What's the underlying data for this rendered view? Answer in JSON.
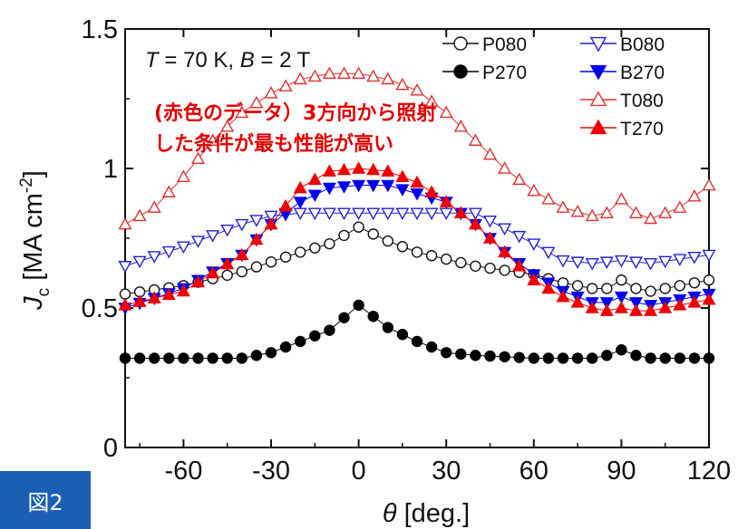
{
  "figure_label": "図2",
  "chart_data": {
    "type": "scatter",
    "condition_text": {
      "T": "T",
      "temp": " = 70 K, ",
      "B": "B",
      "field": " = 2 T"
    },
    "annotation_lines": [
      "(赤色のデータ）3方向から照射",
      "した条件が最も性能が高い"
    ],
    "xlabel": {
      "symbol": "θ",
      "unit": " [deg.]"
    },
    "ylabel": {
      "symbol": "J",
      "sub": "c",
      "unit": " [MA cm",
      "sup": "-2",
      "close": "]"
    },
    "xlim": [
      -80,
      120
    ],
    "ylim": [
      0,
      1.5
    ],
    "xticks": [
      -60,
      -30,
      0,
      30,
      60,
      90,
      120
    ],
    "xtick_labels": [
      "-60",
      "-30",
      "0",
      "30",
      "60",
      "90",
      "120"
    ],
    "yticks": [
      0,
      0.5,
      1,
      1.5
    ],
    "ytick_labels": [
      "0",
      "0.5",
      "1",
      "1.5"
    ],
    "grid": false,
    "legend_placement": "top-right",
    "series": [
      {
        "name": "P080",
        "color": "#111111",
        "marker": "circle",
        "filled": false,
        "theta": [
          -80,
          -60,
          -40,
          -20,
          -10,
          0,
          10,
          20,
          40,
          60,
          70,
          80,
          85,
          90,
          95,
          100,
          120
        ],
        "values": [
          0.55,
          0.58,
          0.63,
          0.7,
          0.73,
          0.79,
          0.74,
          0.7,
          0.65,
          0.62,
          0.59,
          0.57,
          0.57,
          0.6,
          0.57,
          0.56,
          0.6
        ]
      },
      {
        "name": "P270",
        "color": "#000000",
        "marker": "circle",
        "filled": true,
        "theta": [
          -80,
          -60,
          -40,
          -30,
          -20,
          -10,
          0,
          10,
          20,
          30,
          40,
          60,
          70,
          80,
          85,
          90,
          95,
          100,
          120
        ],
        "values": [
          0.32,
          0.32,
          0.32,
          0.34,
          0.38,
          0.42,
          0.51,
          0.43,
          0.38,
          0.34,
          0.33,
          0.32,
          0.32,
          0.32,
          0.33,
          0.35,
          0.33,
          0.32,
          0.32
        ]
      },
      {
        "name": "B080",
        "color": "#2222cc",
        "marker": "triangle-down",
        "filled": false,
        "theta": [
          -80,
          -60,
          -40,
          -30,
          -20,
          0,
          20,
          40,
          60,
          70,
          80,
          90,
          100,
          120
        ],
        "values": [
          0.65,
          0.72,
          0.8,
          0.83,
          0.84,
          0.84,
          0.84,
          0.84,
          0.73,
          0.67,
          0.66,
          0.67,
          0.66,
          0.69
        ]
      },
      {
        "name": "B270",
        "color": "#0000ee",
        "marker": "triangle-down",
        "filled": true,
        "theta": [
          -80,
          -60,
          -40,
          -30,
          -20,
          -10,
          0,
          10,
          20,
          30,
          40,
          50,
          60,
          70,
          80,
          85,
          90,
          95,
          100,
          120
        ],
        "values": [
          0.5,
          0.57,
          0.69,
          0.8,
          0.88,
          0.93,
          0.94,
          0.94,
          0.91,
          0.88,
          0.8,
          0.7,
          0.62,
          0.56,
          0.52,
          0.52,
          0.54,
          0.52,
          0.51,
          0.55
        ]
      },
      {
        "name": "T080",
        "color": "#e03030",
        "marker": "triangle-up",
        "filled": false,
        "theta": [
          -80,
          -70,
          -60,
          -50,
          -40,
          -30,
          -20,
          -10,
          0,
          10,
          20,
          30,
          40,
          50,
          60,
          70,
          80,
          85,
          90,
          95,
          100,
          110,
          120
        ],
        "values": [
          0.8,
          0.86,
          0.97,
          1.1,
          1.2,
          1.27,
          1.32,
          1.34,
          1.34,
          1.32,
          1.28,
          1.2,
          1.1,
          1.0,
          0.92,
          0.86,
          0.83,
          0.84,
          0.89,
          0.84,
          0.82,
          0.86,
          0.94
        ]
      },
      {
        "name": "T270",
        "color": "#ee0000",
        "marker": "triangle-up",
        "filled": true,
        "theta": [
          -80,
          -60,
          -40,
          -30,
          -20,
          -10,
          0,
          10,
          20,
          30,
          40,
          50,
          60,
          70,
          80,
          85,
          90,
          95,
          100,
          120
        ],
        "values": [
          0.51,
          0.56,
          0.69,
          0.8,
          0.93,
          0.99,
          1.0,
          0.99,
          0.95,
          0.88,
          0.8,
          0.7,
          0.6,
          0.54,
          0.5,
          0.49,
          0.5,
          0.49,
          0.49,
          0.53
        ]
      }
    ]
  }
}
